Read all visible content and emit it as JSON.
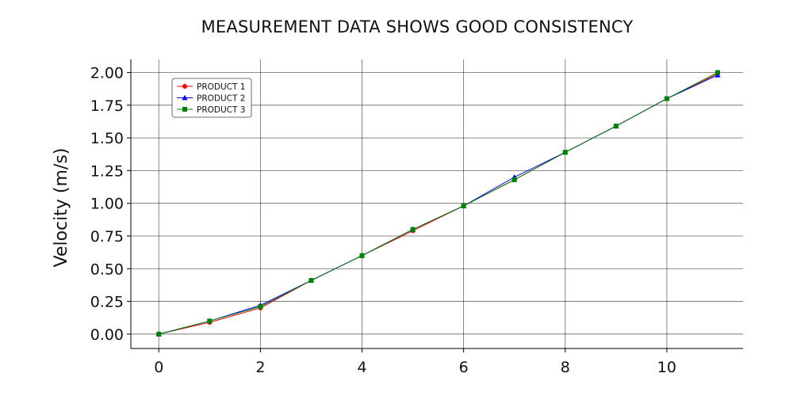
{
  "chart_data": {
    "type": "line",
    "title": "MEASUREMENT DATA SHOWS GOOD CONSISTENCY",
    "xlabel": "",
    "ylabel": "Velocity (m/s)",
    "xlim": [
      -0.55,
      11.5
    ],
    "ylim": [
      -0.11,
      2.1
    ],
    "x_ticks": [
      0,
      2,
      4,
      6,
      8,
      10
    ],
    "y_ticks": [
      0.0,
      0.25,
      0.5,
      0.75,
      1.0,
      1.25,
      1.5,
      1.75,
      2.0
    ],
    "y_tick_labels": [
      "0.00",
      "0.25",
      "0.50",
      "0.75",
      "1.00",
      "1.25",
      "1.50",
      "1.75",
      "2.00"
    ],
    "grid": true,
    "legend_position": "top-left",
    "series": [
      {
        "name": "PRODUCT 1",
        "color": "#ff0000",
        "marker": "circle",
        "x": [
          0,
          1,
          2,
          3,
          4,
          5,
          6,
          7,
          8,
          9,
          10,
          11
        ],
        "y": [
          0.0,
          0.09,
          0.2,
          0.41,
          0.6,
          0.79,
          0.98,
          1.18,
          1.39,
          1.59,
          1.8,
          1.99
        ]
      },
      {
        "name": "PRODUCT 2",
        "color": "#0000ff",
        "marker": "triangle",
        "x": [
          0,
          1,
          2,
          3,
          4,
          5,
          6,
          7,
          8,
          9,
          10,
          11
        ],
        "y": [
          0.0,
          0.1,
          0.22,
          0.41,
          0.6,
          0.8,
          0.98,
          1.2,
          1.39,
          1.59,
          1.8,
          1.98
        ]
      },
      {
        "name": "PRODUCT 3",
        "color": "#008000",
        "marker": "square",
        "x": [
          0,
          1,
          2,
          3,
          4,
          5,
          6,
          7,
          8,
          9,
          10,
          11
        ],
        "y": [
          0.0,
          0.1,
          0.21,
          0.41,
          0.6,
          0.8,
          0.98,
          1.18,
          1.39,
          1.59,
          1.8,
          2.0
        ]
      }
    ]
  }
}
